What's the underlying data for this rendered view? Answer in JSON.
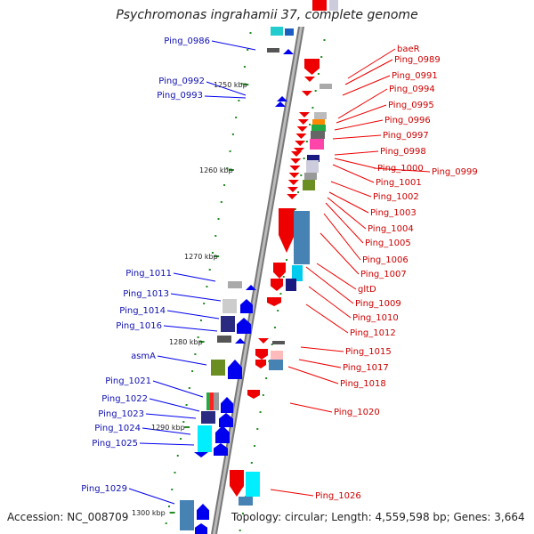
{
  "title": "Psychromonas ingrahamii 37, complete genome",
  "footer": {
    "accession": "Accession: NC_008709",
    "topology": "Topology: circular; Length: 4,559,598 bp; Genes: 3,664"
  },
  "colors": {
    "forward": "#0000ee",
    "reverse": "#ee0000",
    "axis": "#888888",
    "tick": "#228b22"
  },
  "kbp_labels": [
    "1250 kbp",
    "1260 kbp",
    "1270 kbp",
    "1280 kbp",
    "1290 kbp",
    "1300 kbp"
  ],
  "left_genes": [
    "Ping_0986",
    "Ping_0992",
    "Ping_0993",
    "Ping_1011",
    "Ping_1013",
    "Ping_1014",
    "Ping_1016",
    "asmA",
    "Ping_1021",
    "Ping_1022",
    "Ping_1023",
    "Ping_1024",
    "Ping_1025",
    "Ping_1029"
  ],
  "right_genes": [
    "baeR",
    "Ping_0989",
    "Ping_0991",
    "Ping_0994",
    "Ping_0995",
    "Ping_0996",
    "Ping_0997",
    "Ping_0998",
    "Ping_1000",
    "Ping_0999",
    "Ping_1001",
    "Ping_1002",
    "Ping_1003",
    "Ping_1004",
    "Ping_1005",
    "Ping_1006",
    "Ping_1007",
    "gltD",
    "Ping_1009",
    "Ping_1010",
    "Ping_1012",
    "Ping_1015",
    "Ping_1017",
    "Ping_1018",
    "Ping_1020",
    "Ping_1026"
  ]
}
